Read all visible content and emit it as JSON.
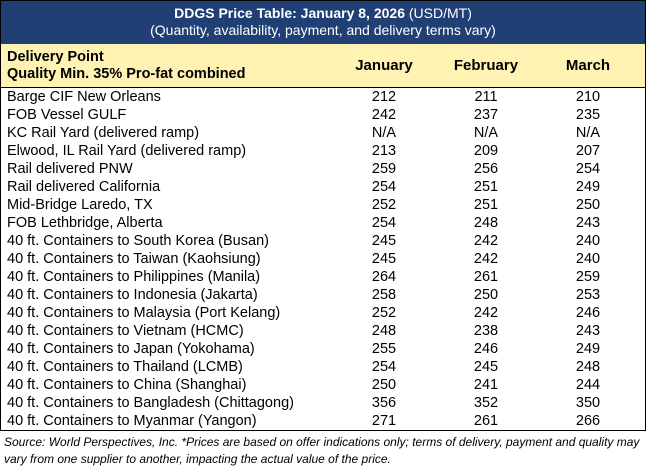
{
  "title": {
    "main": "DDGS Price Table: January 8, 2026",
    "unit": " (USD/MT)",
    "subtitle": "(Quantity, availability, payment, and delivery terms vary)"
  },
  "header": {
    "col_name_line1": "Delivery Point",
    "col_name_line2": "Quality Min. 35% Pro-fat combined",
    "months": [
      "January",
      "February",
      "March"
    ]
  },
  "rows": [
    {
      "name": "Barge CIF New Orleans",
      "jan": "212",
      "feb": "211",
      "mar": "210"
    },
    {
      "name": "FOB Vessel GULF",
      "jan": "242",
      "feb": "237",
      "mar": "235"
    },
    {
      "name": "KC Rail Yard (delivered ramp)",
      "jan": "N/A",
      "feb": "N/A",
      "mar": "N/A"
    },
    {
      "name": "Elwood, IL Rail Yard (delivered ramp)",
      "jan": "213",
      "feb": "209",
      "mar": "207"
    },
    {
      "name": "Rail delivered PNW",
      "jan": "259",
      "feb": "256",
      "mar": "254"
    },
    {
      "name": "Rail delivered California",
      "jan": "254",
      "feb": "251",
      "mar": "249"
    },
    {
      "name": "Mid-Bridge Laredo, TX",
      "jan": "252",
      "feb": "251",
      "mar": "250"
    },
    {
      "name": "FOB Lethbridge, Alberta",
      "jan": "254",
      "feb": "248",
      "mar": "243"
    },
    {
      "name": "40 ft. Containers to South Korea (Busan)",
      "jan": "245",
      "feb": "242",
      "mar": "240"
    },
    {
      "name": "40 ft. Containers to Taiwan (Kaohsiung)",
      "jan": "245",
      "feb": "242",
      "mar": "240"
    },
    {
      "name": "40 ft. Containers to Philippines (Manila)",
      "jan": "264",
      "feb": "261",
      "mar": "259"
    },
    {
      "name": "40 ft. Containers to Indonesia (Jakarta)",
      "jan": "258",
      "feb": "250",
      "mar": "253"
    },
    {
      "name": "40 ft. Containers to Malaysia (Port Kelang)",
      "jan": "252",
      "feb": "242",
      "mar": "246"
    },
    {
      "name": "40 ft. Containers to Vietnam (HCMC)",
      "jan": "248",
      "feb": "238",
      "mar": "243"
    },
    {
      "name": "40 ft. Containers to Japan (Yokohama)",
      "jan": "255",
      "feb": "246",
      "mar": "249"
    },
    {
      "name": "40 ft. Containers to Thailand (LCMB)",
      "jan": "254",
      "feb": "245",
      "mar": "248"
    },
    {
      "name": "40 ft. Containers to China (Shanghai)",
      "jan": "250",
      "feb": "241",
      "mar": "244"
    },
    {
      "name": "40 ft. Containers to Bangladesh (Chittagong)",
      "jan": "356",
      "feb": "352",
      "mar": "350"
    },
    {
      "name": "40 ft. Containers to Myanmar (Yangon)",
      "jan": "271",
      "feb": "261",
      "mar": "266"
    }
  ],
  "footer": "Source: World Perspectives, Inc. *Prices are based on offer indications only; terms of delivery, payment and quality may vary from one supplier to another, impacting the actual value of the price.",
  "colors": {
    "title_bg": "#1f3f75",
    "header_bg": "#fff2b3"
  }
}
